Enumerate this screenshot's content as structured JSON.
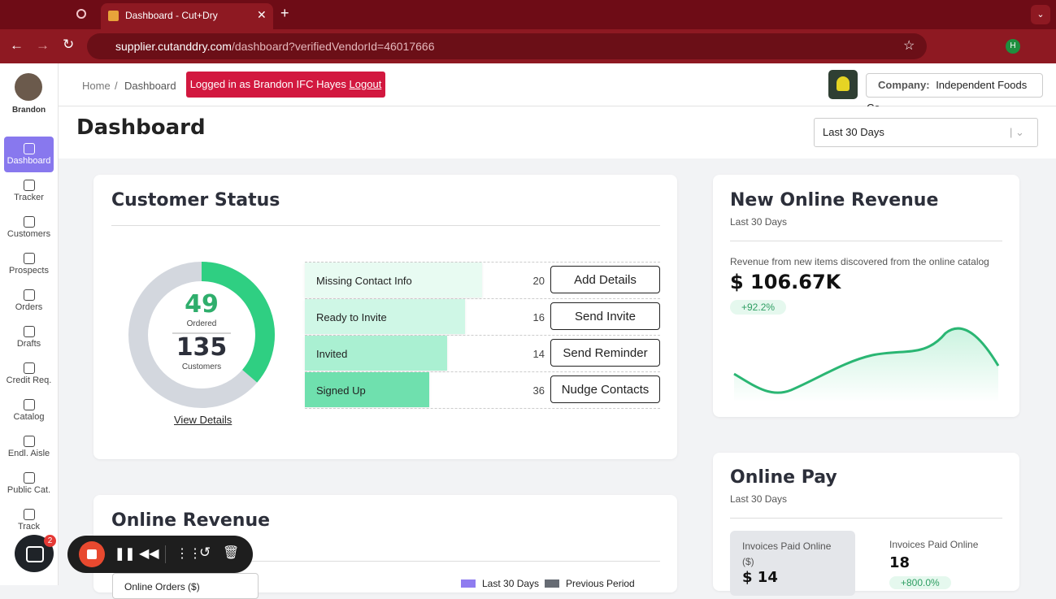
{
  "browser": {
    "tab_title": "Dashboard - Cut+Dry",
    "url_host": "supplier.cutanddry.com",
    "url_path": "/dashboard?verifiedVendorId=46017666",
    "profile": "H"
  },
  "sidebar": {
    "user": "Brandon",
    "items": [
      "Dashboard",
      "Tracker",
      "Customers",
      "Prospects",
      "Orders",
      "Drafts",
      "Credit Req.",
      "Catalog",
      "Endl. Aisle",
      "Public Cat.",
      "Track"
    ],
    "badge": "2"
  },
  "header": {
    "breadcrumb": [
      "Home",
      "Dashboard"
    ],
    "login_text": "Logged in as Brandon IFC Hayes",
    "logout": "Logout",
    "company_label": "Company:",
    "company": "Independent Foods Co"
  },
  "page_title": "Dashboard",
  "period_select": "Last 30 Days",
  "customer_status": {
    "title": "Customer Status",
    "ordered": 49,
    "ordered_label": "Ordered",
    "customers": 135,
    "customers_label": "Customers",
    "view_details": "View Details",
    "rows": [
      {
        "label": "Missing Contact Info",
        "count": 20,
        "action": "Add Details"
      },
      {
        "label": "Ready to Invite",
        "count": 16,
        "action": "Send Invite"
      },
      {
        "label": "Invited",
        "count": 14,
        "action": "Send Reminder"
      },
      {
        "label": "Signed Up",
        "count": 36,
        "action": "Nudge Contacts"
      }
    ]
  },
  "new_online_revenue": {
    "title": "New Online Revenue",
    "period": "Last 30 Days",
    "description": "Revenue from new items discovered from the online catalog",
    "amount": "$ 106.67K",
    "change": "+92.2%"
  },
  "online_pay": {
    "title": "Online Pay",
    "period": "Last 30 Days",
    "metrics": [
      {
        "label": "Invoices Paid Online ($)",
        "value": "$ 14"
      },
      {
        "label": "Invoices Paid Online",
        "value": "18",
        "change": "+800.0%"
      }
    ]
  },
  "online_revenue": {
    "title": "Online Revenue",
    "dropdown": "Online Orders ($)",
    "legend": [
      "Last 30 Days",
      "Previous Period"
    ]
  }
}
